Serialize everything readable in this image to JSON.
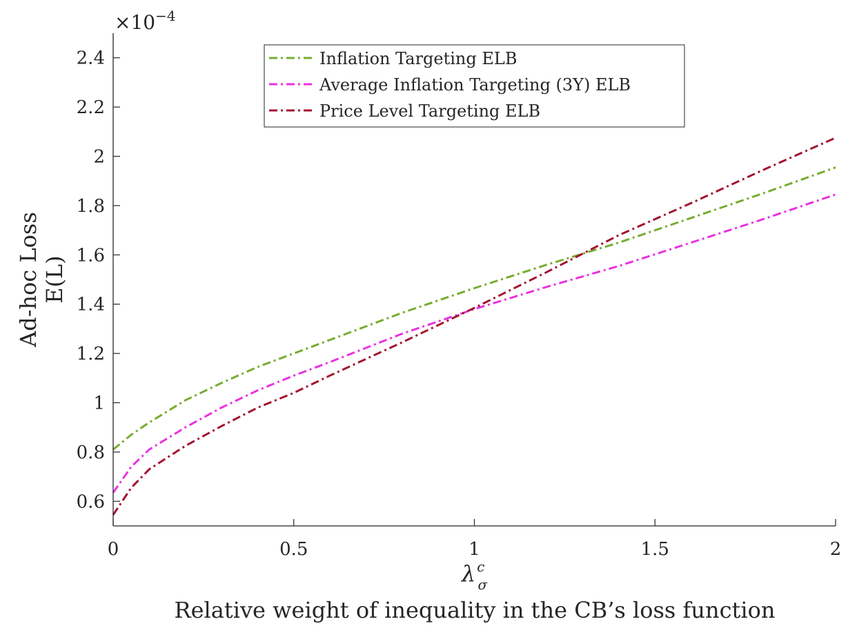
{
  "chart_data": {
    "type": "line",
    "multiplier": {
      "base": "×10",
      "exponent": "−4"
    },
    "ylabel": [
      "Ad-hoc Loss",
      "E(L)"
    ],
    "xlabel": {
      "symbol": "λ",
      "subscript": "σ",
      "superscript": "c",
      "description": "Relative weight of inequality in the CB’s loss function"
    },
    "xlim": [
      0,
      2
    ],
    "ylim": [
      0.5,
      2.5
    ],
    "xticks": [
      0,
      0.5,
      1,
      1.5,
      2
    ],
    "xtick_labels": [
      "0",
      "0.5",
      "1",
      "1.5",
      "2"
    ],
    "yticks": [
      0.6,
      0.8,
      1,
      1.2,
      1.4,
      1.6,
      1.8,
      2,
      2.2,
      2.4
    ],
    "ytick_labels": [
      "0.6",
      "0.8",
      "1",
      "1.2",
      "1.4",
      "1.6",
      "1.8",
      "2",
      "2.2",
      "2.4"
    ],
    "grid": false,
    "legend_position": "top-center",
    "x": [
      0,
      0.05,
      0.1,
      0.2,
      0.3,
      0.4,
      0.5,
      0.6,
      0.8,
      1.0,
      1.2,
      1.4,
      1.6,
      1.8,
      2.0
    ],
    "series": [
      {
        "name": "Inflation Targeting ELB",
        "color": "#77AC30",
        "values": [
          0.81,
          0.87,
          0.92,
          1.01,
          1.08,
          1.145,
          1.2,
          1.255,
          1.365,
          1.465,
          1.56,
          1.65,
          1.75,
          1.85,
          1.955
        ]
      },
      {
        "name": "Average Inflation Targeting (3Y) ELB",
        "color": "#E832E0",
        "values": [
          0.635,
          0.74,
          0.81,
          0.9,
          0.98,
          1.05,
          1.11,
          1.165,
          1.28,
          1.38,
          1.47,
          1.555,
          1.65,
          1.745,
          1.845
        ]
      },
      {
        "name": "Price Level Targeting ELB",
        "color": "#A2142F",
        "values": [
          0.545,
          0.655,
          0.73,
          0.825,
          0.905,
          0.98,
          1.04,
          1.11,
          1.245,
          1.385,
          1.53,
          1.68,
          1.81,
          1.945,
          2.075
        ]
      }
    ]
  }
}
